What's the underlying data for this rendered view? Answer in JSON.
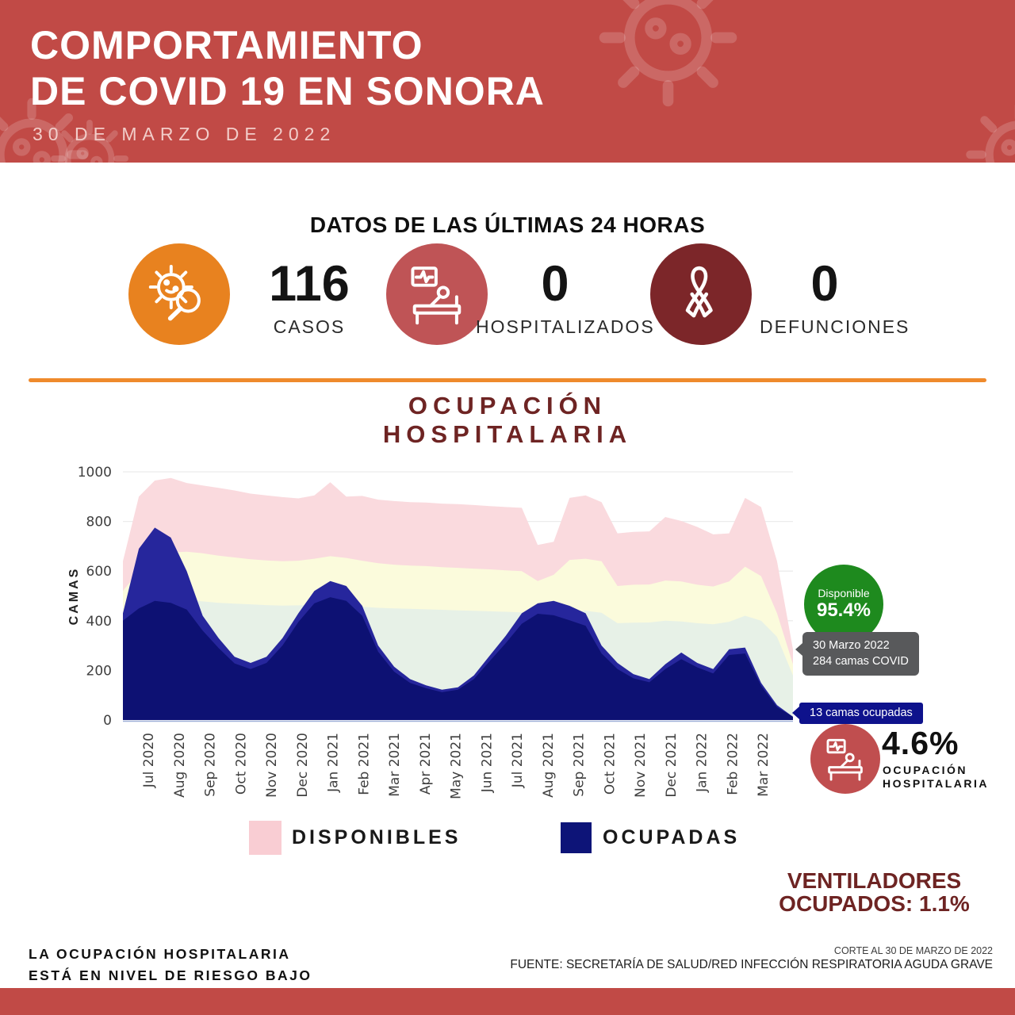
{
  "header": {
    "title_line1": "COMPORTAMIENTO",
    "title_line2": "DE COVID 19 EN SONORA",
    "subtitle": "30 DE MARZO DE 2022",
    "bg_color": "#c14a46"
  },
  "stats": {
    "title": "DATOS DE LAS ÚLTIMAS 24 HORAS",
    "items": [
      {
        "icon": "virus-search-icon",
        "circle_color": "#e8821f",
        "value": "116",
        "label": "CASOS"
      },
      {
        "icon": "hospital-bed-icon",
        "circle_color": "#bf5456",
        "value": "0",
        "label": "HOSPITALIZADOS"
      },
      {
        "icon": "awareness-ribbon-icon",
        "circle_color": "#7c2629",
        "value": "0",
        "label": "DEFUNCIONES"
      }
    ]
  },
  "section": {
    "title_line1": "OCUPACIÓN",
    "title_line2": "HOSPITALARIA",
    "divider_color": "#ef8a2c"
  },
  "chart_data": {
    "type": "area",
    "title": "OCUPACIÓN HOSPITALARIA",
    "ylabel": "CAMAS",
    "ylim": [
      0,
      1000
    ],
    "yticks": [
      0,
      200,
      400,
      600,
      800,
      1000
    ],
    "grid": true,
    "x_start": "Jul 2020",
    "x_end": "Mar 2022",
    "x_tick_labels": [
      "Jul 2020",
      "Aug 2020",
      "Sep 2020",
      "Oct 2020",
      "Nov 2020",
      "Dec 2020",
      "Jan 2021",
      "Feb 2021",
      "Mar 2021",
      "Apr 2021",
      "May 2021",
      "Jun 2021",
      "Jul 2021",
      "Aug 2021",
      "Sep 2021",
      "Oct 2021",
      "Nov 2021",
      "Dec 2021",
      "Jan 2022",
      "Feb 2022",
      "Mar 2022"
    ],
    "legend": [
      {
        "label": "DISPONIBLES",
        "color": "#f9cdd3"
      },
      {
        "label": "OCUPADAS",
        "color": "#0d1478"
      }
    ],
    "series": [
      {
        "name": "disponibles-total",
        "color": "#fadade",
        "values": [
          640,
          900,
          965,
          975,
          955,
          945,
          935,
          925,
          912,
          905,
          898,
          893,
          905,
          958,
          900,
          903,
          888,
          882,
          878,
          876,
          872,
          870,
          866,
          862,
          858,
          855,
          705,
          718,
          895,
          905,
          878,
          752,
          758,
          760,
          818,
          802,
          778,
          748,
          752,
          895,
          858,
          640,
          285
        ]
      },
      {
        "name": "capa-amarilla",
        "color": "#fbfbdc",
        "values": [
          520,
          600,
          648,
          675,
          678,
          672,
          662,
          655,
          648,
          643,
          640,
          642,
          650,
          660,
          653,
          642,
          632,
          626,
          622,
          620,
          616,
          613,
          610,
          607,
          603,
          600,
          560,
          585,
          645,
          650,
          640,
          540,
          545,
          546,
          562,
          558,
          545,
          538,
          558,
          618,
          580,
          430,
          225
        ]
      },
      {
        "name": "capa-verde",
        "color": "#e7f1e7",
        "values": [
          430,
          462,
          478,
          488,
          483,
          478,
          472,
          469,
          466,
          463,
          461,
          462,
          465,
          463,
          460,
          456,
          452,
          450,
          448,
          446,
          444,
          442,
          440,
          438,
          436,
          434,
          420,
          428,
          438,
          440,
          432,
          390,
          392,
          393,
          400,
          397,
          390,
          386,
          396,
          420,
          400,
          335,
          180
        ]
      },
      {
        "name": "ocupadas-pico",
        "color": "#26269c",
        "values": [
          430,
          690,
          775,
          735,
          600,
          420,
          330,
          255,
          230,
          255,
          330,
          430,
          520,
          560,
          540,
          460,
          300,
          215,
          165,
          140,
          122,
          132,
          180,
          260,
          340,
          430,
          470,
          480,
          460,
          430,
          300,
          230,
          185,
          165,
          225,
          272,
          230,
          205,
          285,
          292,
          150,
          60,
          13
        ]
      },
      {
        "name": "ocupadas",
        "color": "#0d1173",
        "values": [
          400,
          450,
          480,
          472,
          445,
          360,
          290,
          228,
          205,
          230,
          300,
          395,
          470,
          495,
          480,
          420,
          275,
          195,
          150,
          128,
          112,
          122,
          165,
          238,
          310,
          388,
          428,
          422,
          402,
          380,
          268,
          205,
          168,
          152,
          205,
          245,
          212,
          188,
          262,
          268,
          138,
          52,
          13
        ]
      }
    ],
    "annotations": {
      "available_badge": {
        "label": "Disponible",
        "value": "95.4%",
        "color": "#1e8a1e"
      },
      "date_tooltip": {
        "line1": "30 Marzo 2022",
        "line2": "284 camas COVID",
        "color": "#58595b"
      },
      "occupied_tooltip": {
        "text": "13  camas ocupadas",
        "color": "#0e128c"
      },
      "occupancy_badge": {
        "value": "4.6%",
        "label_line1": "OCUPACIÓN",
        "label_line2": "HOSPITALARIA",
        "circle_color": "#c04e4f"
      }
    }
  },
  "footer": {
    "ventilators_line1": "VENTILADORES",
    "ventilators_line2": "OCUPADOS: 1.1%",
    "risk_line1": "LA OCUPACIÓN HOSPITALARIA",
    "risk_line2": "ESTÁ EN NIVEL DE RIESGO BAJO",
    "cutoff": "CORTE AL 30 DE MARZO DE 2022",
    "source": "FUENTE: SECRETARÍA DE SALUD/RED INFECCIÓN RESPIRATORIA AGUDA GRAVE"
  }
}
